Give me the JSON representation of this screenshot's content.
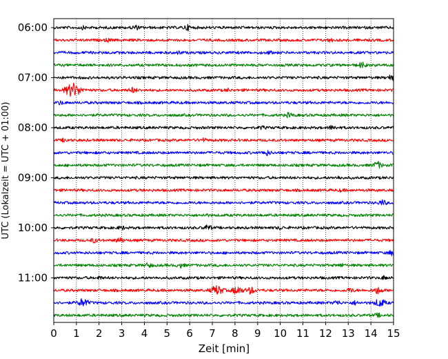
{
  "chart_data": {
    "type": "line",
    "title": "",
    "xlabel": "Zeit  [min]",
    "ylabel": "UTC (Lokalzeit = UTC + 01:00)",
    "xlim": [
      0,
      15
    ],
    "x_ticks": [
      "0",
      "1",
      "2",
      "3",
      "4",
      "5",
      "6",
      "7",
      "8",
      "9",
      "10",
      "11",
      "12",
      "13",
      "14",
      "15"
    ],
    "y_ticks": [
      "06:00",
      "07:00",
      "08:00",
      "09:00",
      "10:00",
      "11:00"
    ],
    "grid": "vertical dotted",
    "colors": [
      "#000000",
      "#ff0000",
      "#0000ff",
      "#008000"
    ],
    "traces": [
      {
        "start": "06:00",
        "color": "#000000",
        "events": [
          [
            1.3,
            1.5
          ],
          [
            3.6,
            2.5
          ],
          [
            5.9,
            3
          ]
        ]
      },
      {
        "start": "06:15",
        "color": "#ff0000",
        "events": [
          [
            2.4,
            1.8
          ],
          [
            12.2,
            1.8
          ]
        ]
      },
      {
        "start": "06:30",
        "color": "#0000ff",
        "events": [
          [
            5.5,
            1.5
          ],
          [
            9.5,
            1.5
          ]
        ]
      },
      {
        "start": "06:45",
        "color": "#008000",
        "events": [
          [
            13.6,
            3
          ]
        ]
      },
      {
        "start": "07:00",
        "color": "#000000",
        "events": [
          [
            14.9,
            3
          ]
        ]
      },
      {
        "start": "07:15",
        "color": "#ff0000",
        "events": [
          [
            0.85,
            9
          ],
          [
            3.5,
            3
          ],
          [
            7.7,
            1.5
          ]
        ]
      },
      {
        "start": "07:30",
        "color": "#0000ff",
        "events": [
          [
            0.3,
            2
          ]
        ]
      },
      {
        "start": "07:45",
        "color": "#008000",
        "events": [
          [
            10.4,
            2.5
          ]
        ]
      },
      {
        "start": "08:00",
        "color": "#000000",
        "events": [
          [
            12.3,
            2.5
          ],
          [
            9.2,
            1.5
          ]
        ]
      },
      {
        "start": "08:15",
        "color": "#ff0000",
        "events": [
          [
            0.5,
            2
          ],
          [
            6.6,
            2
          ]
        ]
      },
      {
        "start": "08:30",
        "color": "#0000ff",
        "events": [
          [
            9.4,
            3
          ]
        ]
      },
      {
        "start": "08:45",
        "color": "#008000",
        "events": [
          [
            14.3,
            4
          ]
        ]
      },
      {
        "start": "09:00",
        "color": "#000000",
        "events": [
          [
            12.6,
            1.5
          ]
        ]
      },
      {
        "start": "09:15",
        "color": "#ff0000",
        "events": [
          [
            12.7,
            1.2
          ]
        ]
      },
      {
        "start": "09:30",
        "color": "#0000ff",
        "events": [
          [
            14.5,
            3
          ]
        ]
      },
      {
        "start": "09:45",
        "color": "#008000",
        "events": [
          [
            6.7,
            1.5
          ]
        ]
      },
      {
        "start": "10:00",
        "color": "#000000",
        "events": [
          [
            3,
            2
          ],
          [
            6.8,
            3
          ],
          [
            10,
            1.5
          ]
        ]
      },
      {
        "start": "10:15",
        "color": "#ff0000",
        "events": [
          [
            1.8,
            2.5
          ],
          [
            2.9,
            3
          ]
        ]
      },
      {
        "start": "10:30",
        "color": "#0000ff",
        "events": [
          [
            14.9,
            2.5
          ]
        ]
      },
      {
        "start": "10:45",
        "color": "#008000",
        "events": [
          [
            4.2,
            2.5
          ],
          [
            5.6,
            2.5
          ],
          [
            12.7,
            1.5
          ]
        ]
      },
      {
        "start": "11:00",
        "color": "#000000",
        "events": [
          [
            2,
            1.5
          ],
          [
            14.6,
            2
          ]
        ]
      },
      {
        "start": "11:15",
        "color": "#ff0000",
        "events": [
          [
            7.2,
            6
          ],
          [
            8.1,
            5
          ],
          [
            8.7,
            4
          ],
          [
            14.3,
            4
          ],
          [
            13.1,
            2.5
          ]
        ]
      },
      {
        "start": "11:30",
        "color": "#0000ff",
        "events": [
          [
            1.3,
            5
          ],
          [
            12.5,
            2.5
          ],
          [
            14.4,
            5
          ],
          [
            13.3,
            2
          ]
        ]
      },
      {
        "start": "11:45",
        "color": "#008000",
        "events": [
          [
            14.3,
            2
          ]
        ]
      }
    ]
  }
}
